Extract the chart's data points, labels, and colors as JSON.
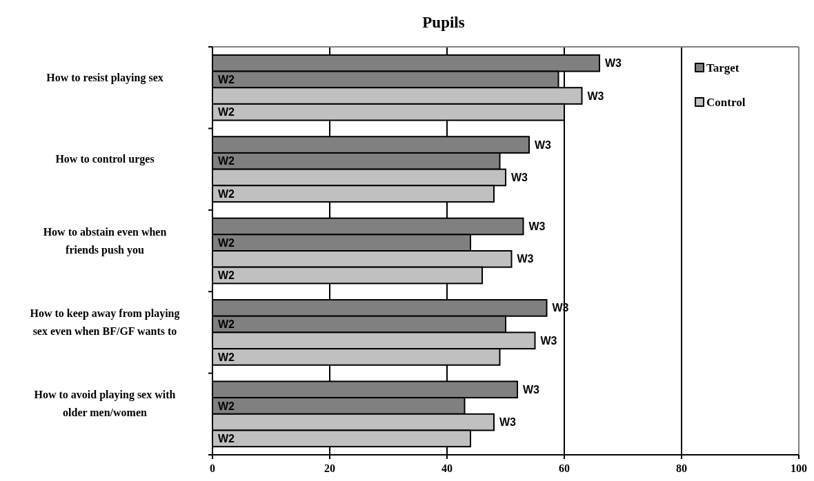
{
  "chart_data": {
    "type": "bar",
    "orientation": "horizontal",
    "title": "Pupils",
    "categories": [
      "How to resist playing sex",
      "How to control urges",
      "How to abstain even when friends push you",
      "How to keep away from playing sex even when BF/GF wants to",
      "How to avoid playing sex with older men/women"
    ],
    "series": [
      {
        "name": "Target",
        "color": "#808080",
        "values": [
          66,
          54,
          53,
          57,
          52
        ],
        "value_labels": [
          "W3",
          "W3",
          "W3",
          "W3",
          "W3"
        ]
      },
      {
        "color": "#808080",
        "values": [
          59,
          49,
          44,
          50,
          43
        ],
        "value_labels": [
          "W2",
          "W2",
          "W2",
          "W2",
          "W2"
        ]
      },
      {
        "name": "Control",
        "color": "#c0c0c0",
        "values": [
          63,
          50,
          51,
          55,
          48
        ],
        "value_labels": [
          "W3",
          "W3",
          "W3",
          "W3",
          "W3"
        ]
      },
      {
        "color": "#c0c0c0",
        "values": [
          60,
          48,
          46,
          49,
          44
        ],
        "value_labels": [
          "W2",
          "W2",
          "W2",
          "W2",
          "W2"
        ]
      }
    ],
    "xlim": [
      0,
      100
    ],
    "xticks": [
      0,
      20,
      40,
      60,
      80,
      100
    ],
    "grid": "x",
    "legend": "top right"
  }
}
